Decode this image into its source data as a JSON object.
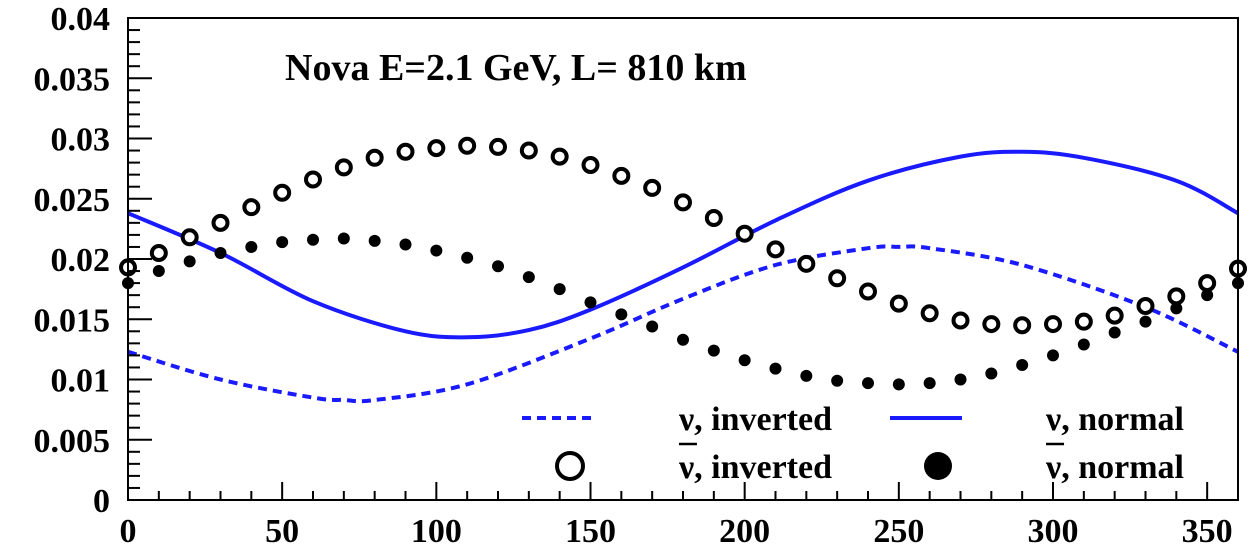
{
  "chart_data": {
    "type": "scatter",
    "title": "Nova E=2.1 GeV, L= 810 km",
    "xlabel": "",
    "ylabel": "",
    "xlim": [
      0,
      360
    ],
    "ylim": [
      0,
      0.04
    ],
    "x_ticks": [
      "0",
      "50",
      "100",
      "150",
      "200",
      "250",
      "300",
      "350"
    ],
    "y_ticks": [
      "0",
      "0.005",
      "0.01",
      "0.015",
      "0.02",
      "0.025",
      "0.03",
      "0.035",
      "0.04"
    ],
    "grid": false,
    "legend_placement": "bottom-right",
    "series": [
      {
        "name": "ν, inverted",
        "style": "dashed-line",
        "color": "#1a1aff",
        "x": [
          0,
          30,
          60,
          70,
          80,
          110,
          150,
          180,
          210,
          240,
          250,
          260,
          290,
          330,
          360
        ],
        "y": [
          0.0123,
          0.01,
          0.0085,
          0.0083,
          0.0083,
          0.0096,
          0.0134,
          0.0167,
          0.0195,
          0.0209,
          0.021,
          0.0209,
          0.0195,
          0.016,
          0.0123
        ]
      },
      {
        "name": "ν, normal",
        "style": "solid-line",
        "color": "#1a1aff",
        "x": [
          0,
          30,
          60,
          90,
          110,
          130,
          150,
          180,
          210,
          240,
          270,
          290,
          310,
          340,
          360
        ],
        "y": [
          0.0238,
          0.0205,
          0.0165,
          0.014,
          0.0135,
          0.0141,
          0.0158,
          0.0193,
          0.0232,
          0.0265,
          0.0285,
          0.0289,
          0.0284,
          0.0265,
          0.0238
        ]
      },
      {
        "name": "ν, inverted",
        "style": "open-circle",
        "color": "#000000",
        "x": [
          0,
          10,
          20,
          30,
          40,
          50,
          60,
          70,
          80,
          90,
          100,
          110,
          120,
          130,
          140,
          150,
          160,
          170,
          180,
          190,
          200,
          210,
          220,
          230,
          240,
          250,
          260,
          270,
          280,
          290,
          300,
          310,
          320,
          330,
          340,
          350,
          360
        ],
        "y": [
          0.0193,
          0.0205,
          0.0218,
          0.023,
          0.0243,
          0.0255,
          0.0266,
          0.0276,
          0.0284,
          0.0289,
          0.0292,
          0.0294,
          0.0293,
          0.029,
          0.0285,
          0.0278,
          0.0269,
          0.0259,
          0.0247,
          0.0234,
          0.0221,
          0.0208,
          0.0196,
          0.0184,
          0.0173,
          0.0163,
          0.0155,
          0.0149,
          0.0146,
          0.0145,
          0.0146,
          0.0148,
          0.0153,
          0.0161,
          0.0169,
          0.018,
          0.0192
        ]
      },
      {
        "name": "ν, normal",
        "style": "filled-circle",
        "color": "#000000",
        "x": [
          0,
          10,
          20,
          30,
          40,
          50,
          60,
          70,
          80,
          90,
          100,
          110,
          120,
          130,
          140,
          150,
          160,
          170,
          180,
          190,
          200,
          210,
          220,
          230,
          240,
          250,
          260,
          270,
          280,
          290,
          300,
          310,
          320,
          330,
          340,
          350,
          360
        ],
        "y": [
          0.018,
          0.019,
          0.0198,
          0.0205,
          0.021,
          0.0214,
          0.0216,
          0.0217,
          0.0215,
          0.0212,
          0.0207,
          0.0201,
          0.0194,
          0.0185,
          0.0175,
          0.0164,
          0.0154,
          0.0144,
          0.0133,
          0.0124,
          0.0116,
          0.0109,
          0.0103,
          0.0099,
          0.0097,
          0.0096,
          0.0097,
          0.01,
          0.0105,
          0.0112,
          0.012,
          0.0129,
          0.0139,
          0.0148,
          0.0159,
          0.017,
          0.018
        ]
      }
    ],
    "legend": [
      {
        "label": "ν, inverted",
        "symbol": "dashed-line",
        "color": "#1a1aff",
        "overbar": false
      },
      {
        "label": "ν, normal",
        "symbol": "solid-line",
        "color": "#1a1aff",
        "overbar": false
      },
      {
        "label": "ν, inverted",
        "symbol": "open-circle",
        "color": "#000000",
        "overbar": true
      },
      {
        "label": "ν, normal",
        "symbol": "filled-circle",
        "color": "#000000",
        "overbar": true
      }
    ]
  }
}
